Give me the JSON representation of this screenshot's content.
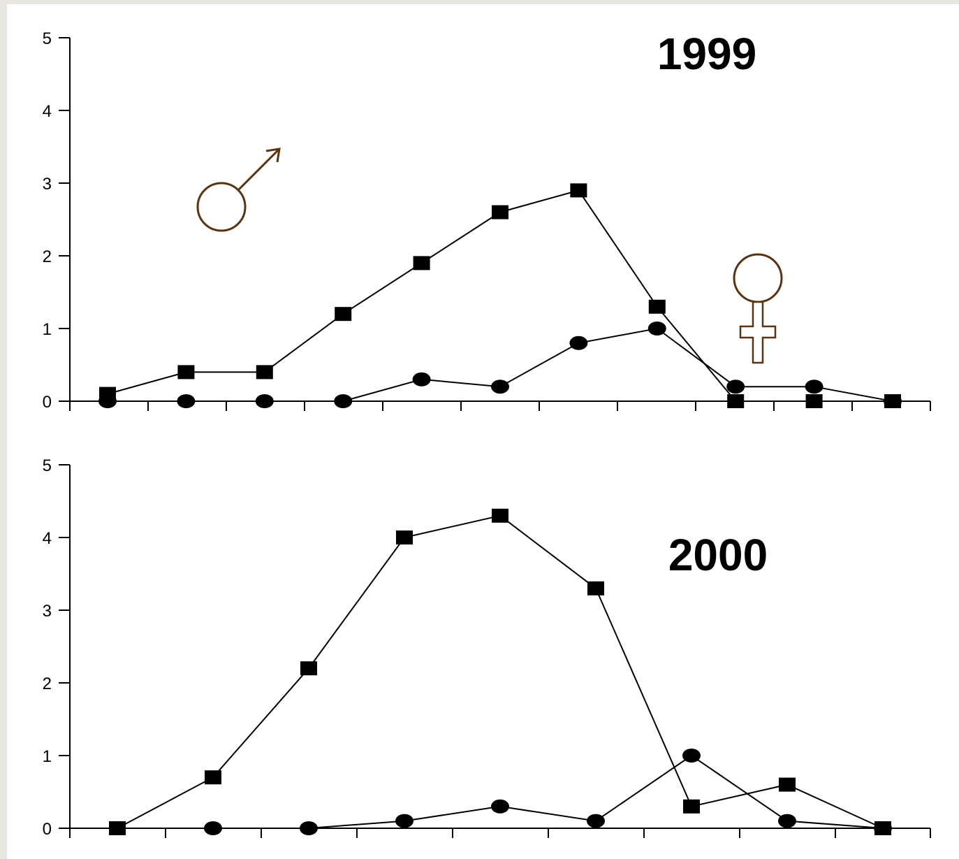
{
  "colors": {
    "background": "#e8e6e1",
    "panel": "#ffffff",
    "annotation": "#5a3410",
    "ink": "#000000"
  },
  "chart_data": [
    {
      "type": "line",
      "title": "1999",
      "xlabel": "",
      "ylabel": "",
      "ylim": [
        0,
        5
      ],
      "yticks": [
        "0",
        "1",
        "2",
        "3",
        "4",
        "5"
      ],
      "x_tick_count": 11,
      "grid": false,
      "annotations": [
        "male-symbol",
        "female-symbol"
      ],
      "series": [
        {
          "marker": "square",
          "values": [
            0.1,
            0.4,
            0.4,
            1.2,
            1.9,
            2.6,
            2.9,
            1.3,
            0,
            0,
            0
          ]
        },
        {
          "marker": "circle",
          "values": [
            0,
            0,
            0,
            0,
            0.3,
            0.2,
            0.8,
            1.0,
            0.2,
            0.2,
            0
          ]
        }
      ]
    },
    {
      "type": "line",
      "title": "2000",
      "xlabel": "",
      "ylabel": "",
      "ylim": [
        0,
        5
      ],
      "yticks": [
        "0",
        "1",
        "2",
        "3",
        "4",
        "5"
      ],
      "x_tick_count": 9,
      "grid": false,
      "series": [
        {
          "marker": "square",
          "values": [
            0,
            0.7,
            2.2,
            4.0,
            4.3,
            3.3,
            0.3,
            0.6,
            0
          ]
        },
        {
          "marker": "circle",
          "values": [
            null,
            0,
            0,
            0.1,
            0.3,
            0.1,
            1.0,
            0.1,
            0
          ]
        }
      ]
    }
  ]
}
